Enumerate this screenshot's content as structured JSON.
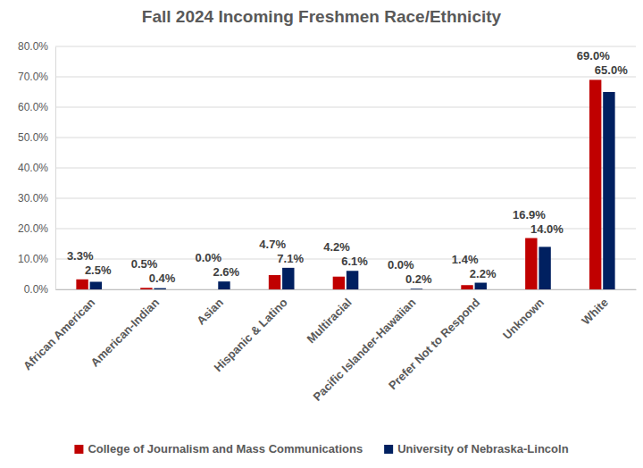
{
  "chart_data": {
    "type": "bar",
    "title": "Fall 2024 Incoming Freshmen Race/Ethnicity",
    "categories": [
      "African American",
      "American-Indian",
      "Asian",
      "Hispanic & Latino",
      "Multiracial",
      "Pacific Islander-Hawaiian",
      "Prefer Not to Respond",
      "Unknown",
      "White"
    ],
    "series": [
      {
        "name": "College of Journalism and Mass Communications",
        "color": "#c00000",
        "values": [
          3.3,
          0.5,
          0.0,
          4.7,
          4.2,
          0.0,
          1.4,
          16.9,
          69.0
        ],
        "value_labels": [
          "3.3%",
          "0.5%",
          "0.0%",
          "4.7%",
          "4.2%",
          "0.0%",
          "1.4%",
          "16.9%",
          "69.0%"
        ]
      },
      {
        "name": "University of Nebraska-Lincoln",
        "color": "#002060",
        "values": [
          2.5,
          0.4,
          2.6,
          7.1,
          6.1,
          0.2,
          2.2,
          14.0,
          65.0
        ],
        "value_labels": [
          "2.5%",
          "0.4%",
          "2.6%",
          "7.1%",
          "6.1%",
          "0.2%",
          "2.2%",
          "14.0%",
          "65.0%"
        ]
      }
    ],
    "ylim": [
      0,
      80
    ],
    "yticks": [
      {
        "value": 0,
        "label": "0.0%"
      },
      {
        "value": 10,
        "label": "10.0%"
      },
      {
        "value": 20,
        "label": "20.0%"
      },
      {
        "value": 30,
        "label": "30.0%"
      },
      {
        "value": 40,
        "label": "40.0%"
      },
      {
        "value": 50,
        "label": "50.0%"
      },
      {
        "value": 60,
        "label": "60.0%"
      },
      {
        "value": 70,
        "label": "70.0%"
      },
      {
        "value": 80,
        "label": "80.0%"
      }
    ],
    "grid": true,
    "legend": "bottom",
    "data_labels": true
  }
}
